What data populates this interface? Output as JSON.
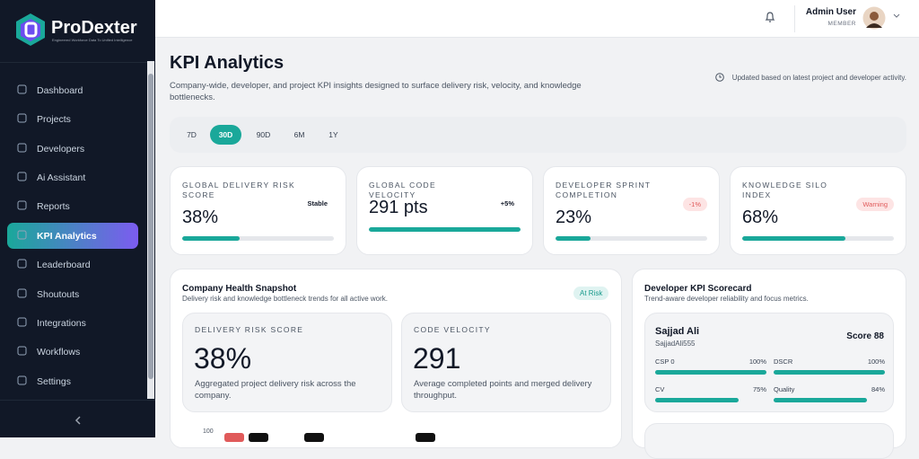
{
  "sidebar": {
    "brand": "ProDexter",
    "tagline": "Engineered Workforce Data To Unified Intelligence",
    "nav": [
      "Dashboard",
      "Projects",
      "Developers",
      "Ai Assistant",
      "Reports",
      "KPI Analytics",
      "Leaderboard",
      "Shoutouts",
      "Integrations",
      "Workflows",
      "Settings"
    ]
  },
  "header": {
    "user_name": "Admin User",
    "user_role": "MEMBER"
  },
  "page": {
    "title": "KPI Analytics",
    "description": "Company-wide, developer, and project KPI insights designed to surface delivery risk, velocity, and knowledge bottlenecks.",
    "updated_note": "Updated based on latest project and developer activity."
  },
  "ranges": [
    "7D",
    "30D",
    "90D",
    "6M",
    "1Y"
  ],
  "kpi_cards": [
    {
      "label": "GLOBAL DELIVERY RISK SCORE",
      "value": "38%",
      "badge": "Stable",
      "progress": 38
    },
    {
      "label": "GLOBAL CODE VELOCITY",
      "value": "291 pts",
      "badge": "+5%",
      "progress": 100
    },
    {
      "label": "DEVELOPER SPRINT COMPLETION",
      "value": "23%",
      "badge": "-1%",
      "progress": 23
    },
    {
      "label": "KNOWLEDGE SILO INDEX",
      "value": "68%",
      "badge": "Warning",
      "progress": 68
    }
  ],
  "health": {
    "title": "Company Health Snapshot",
    "subtitle": "Delivery risk and knowledge bottleneck trends for all active work.",
    "badge": "At Risk",
    "cards": [
      {
        "label": "DELIVERY RISK SCORE",
        "value": "38%",
        "description": "Aggregated project delivery risk across the company."
      },
      {
        "label": "CODE VELOCITY",
        "value": "291",
        "description": "Average completed points and merged delivery throughput."
      }
    ],
    "chart_tick": "100"
  },
  "scorecard": {
    "title": "Developer KPI Scorecard",
    "subtitle": "Trend-aware developer reliability and focus metrics.",
    "developer": {
      "name": "Sajjad Ali",
      "handle": "SajjadAli555",
      "score": "Score 88",
      "metrics": [
        {
          "label": "CSP 0",
          "value": "100%",
          "progress": 100
        },
        {
          "label": "DSCR",
          "value": "100%",
          "progress": 100
        },
        {
          "label": "CV",
          "value": "75%",
          "progress": 75
        },
        {
          "label": "Quality",
          "value": "84%",
          "progress": 84
        }
      ]
    }
  }
}
